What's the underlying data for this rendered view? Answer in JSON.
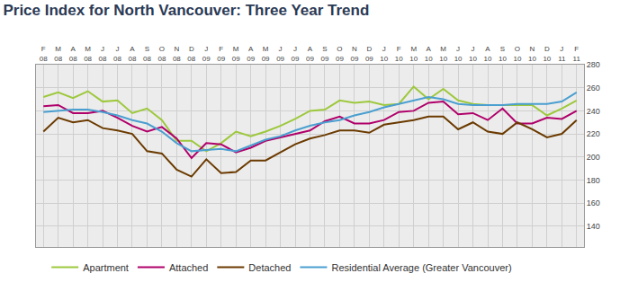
{
  "chart_data": {
    "type": "line",
    "title": "Price Index for North Vancouver: Three Year Trend",
    "categories": [
      "F 08",
      "M 08",
      "A 08",
      "M 08",
      "J 08",
      "J 08",
      "A 08",
      "S 08",
      "O 08",
      "N 08",
      "D 08",
      "J 09",
      "F 09",
      "M 09",
      "A 09",
      "M 09",
      "J 09",
      "J 09",
      "A 09",
      "S 09",
      "O 09",
      "N 09",
      "D 09",
      "J 10",
      "F 10",
      "M 10",
      "A 10",
      "M 10",
      "J 10",
      "J 10",
      "A 10",
      "S 10",
      "O 10",
      "N 10",
      "D 10",
      "J 11",
      "F 11"
    ],
    "series": [
      {
        "name": "Apartment",
        "color": "#9dc83c",
        "values": [
          252,
          256,
          251,
          257,
          248,
          249,
          238,
          242,
          232,
          214,
          214,
          205,
          212,
          222,
          218,
          222,
          227,
          233,
          240,
          241,
          249,
          247,
          248,
          245,
          246,
          261,
          250,
          259,
          249,
          246,
          245,
          245,
          245,
          245,
          236,
          242,
          249
        ]
      },
      {
        "name": "Attached",
        "color": "#b0006a",
        "values": [
          244,
          245,
          238,
          238,
          240,
          234,
          227,
          222,
          226,
          216,
          199,
          212,
          211,
          204,
          208,
          214,
          217,
          220,
          223,
          231,
          235,
          229,
          229,
          232,
          239,
          240,
          247,
          248,
          237,
          238,
          232,
          242,
          229,
          229,
          234,
          233,
          240
        ]
      },
      {
        "name": "Detached",
        "color": "#6b3a00",
        "values": [
          222,
          234,
          230,
          232,
          225,
          223,
          220,
          205,
          203,
          189,
          183,
          198,
          186,
          187,
          197,
          197,
          204,
          211,
          216,
          219,
          223,
          223,
          221,
          228,
          230,
          232,
          235,
          235,
          224,
          230,
          222,
          220,
          230,
          224,
          217,
          220,
          232
        ]
      },
      {
        "name": "Residential Average (Greater Vancouver)",
        "color": "#4a9fd0",
        "values": [
          239,
          240,
          241,
          241,
          239,
          236,
          232,
          229,
          222,
          212,
          205,
          206,
          207,
          205,
          210,
          215,
          218,
          223,
          227,
          230,
          232,
          236,
          239,
          243,
          246,
          249,
          252,
          250,
          246,
          245,
          245,
          245,
          246,
          246,
          246,
          248,
          256
        ]
      }
    ],
    "ylim": [
      122,
      280
    ],
    "yticks": [
      140,
      160,
      180,
      200,
      220,
      240,
      260,
      280
    ],
    "grid": true,
    "legend": "bottom"
  }
}
